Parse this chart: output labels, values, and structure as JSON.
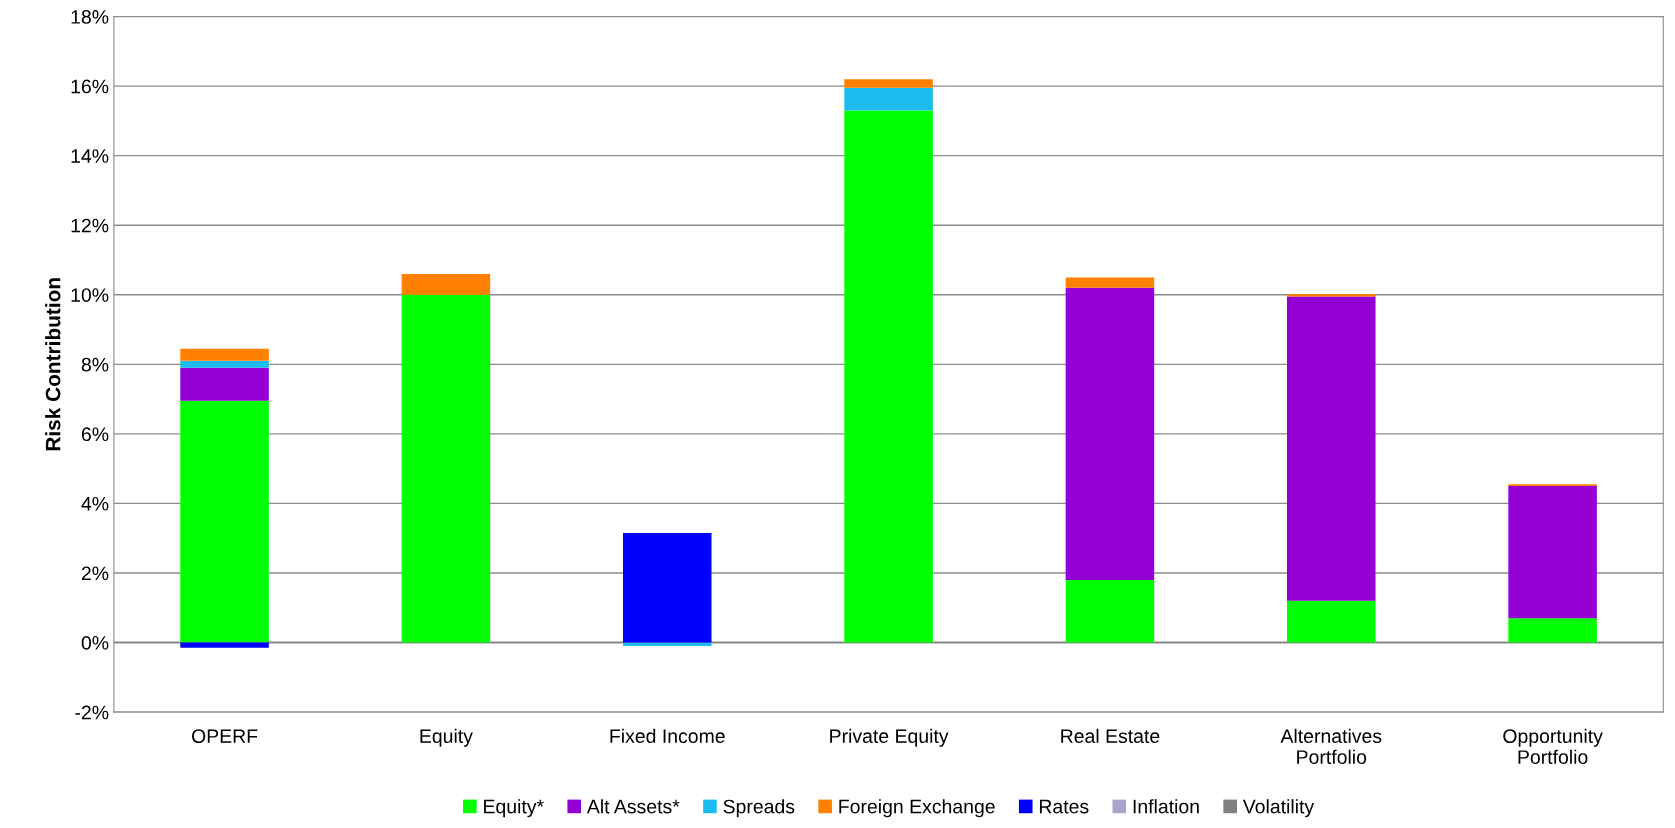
{
  "chart_data": {
    "type": "bar",
    "stacked": true,
    "ylabel": "Risk Contribution",
    "categories": [
      "OPERF",
      "Equity",
      "Fixed Income",
      "Private Equity",
      "Real Estate",
      "Alternatives\nPortfolio",
      "Opportunity\nPortfolio"
    ],
    "series": [
      {
        "name": "Equity*",
        "color": "#00ff00",
        "values": [
          6.95,
          10.0,
          null,
          15.3,
          1.8,
          1.2,
          0.7
        ]
      },
      {
        "name": "Alt Assets*",
        "color": "#9400d3",
        "values": [
          0.95,
          null,
          null,
          null,
          8.4,
          8.75,
          3.8
        ]
      },
      {
        "name": "Spreads",
        "color": "#1cbcf0",
        "values": [
          0.2,
          null,
          -0.1,
          0.65,
          null,
          null,
          null
        ]
      },
      {
        "name": "Foreign Exchange",
        "color": "#ff8000",
        "values": [
          0.35,
          0.6,
          null,
          0.25,
          0.3,
          0.07,
          0.05
        ]
      },
      {
        "name": "Rates",
        "color": "#0000ff",
        "values": [
          -0.15,
          null,
          3.15,
          null,
          null,
          null,
          null
        ]
      },
      {
        "name": "Inflation",
        "color": "#a6a6c8",
        "values": [
          null,
          null,
          null,
          null,
          null,
          null,
          null
        ]
      },
      {
        "name": "Volatility",
        "color": "#808080",
        "values": [
          null,
          null,
          null,
          null,
          null,
          null,
          null
        ]
      }
    ],
    "ylim": [
      -2,
      18
    ],
    "yticks": [
      {
        "value": -2,
        "label": "-2%"
      },
      {
        "value": 0,
        "label": "0%"
      },
      {
        "value": 2,
        "label": "2%"
      },
      {
        "value": 4,
        "label": "4%"
      },
      {
        "value": 6,
        "label": "6%"
      },
      {
        "value": 8,
        "label": "8%"
      },
      {
        "value": 10,
        "label": "10%"
      },
      {
        "value": 12,
        "label": "12%"
      },
      {
        "value": 14,
        "label": "14%"
      },
      {
        "value": 16,
        "label": "16%"
      },
      {
        "value": 18,
        "label": "18%"
      }
    ],
    "grid": "y",
    "legend": "bottom"
  }
}
